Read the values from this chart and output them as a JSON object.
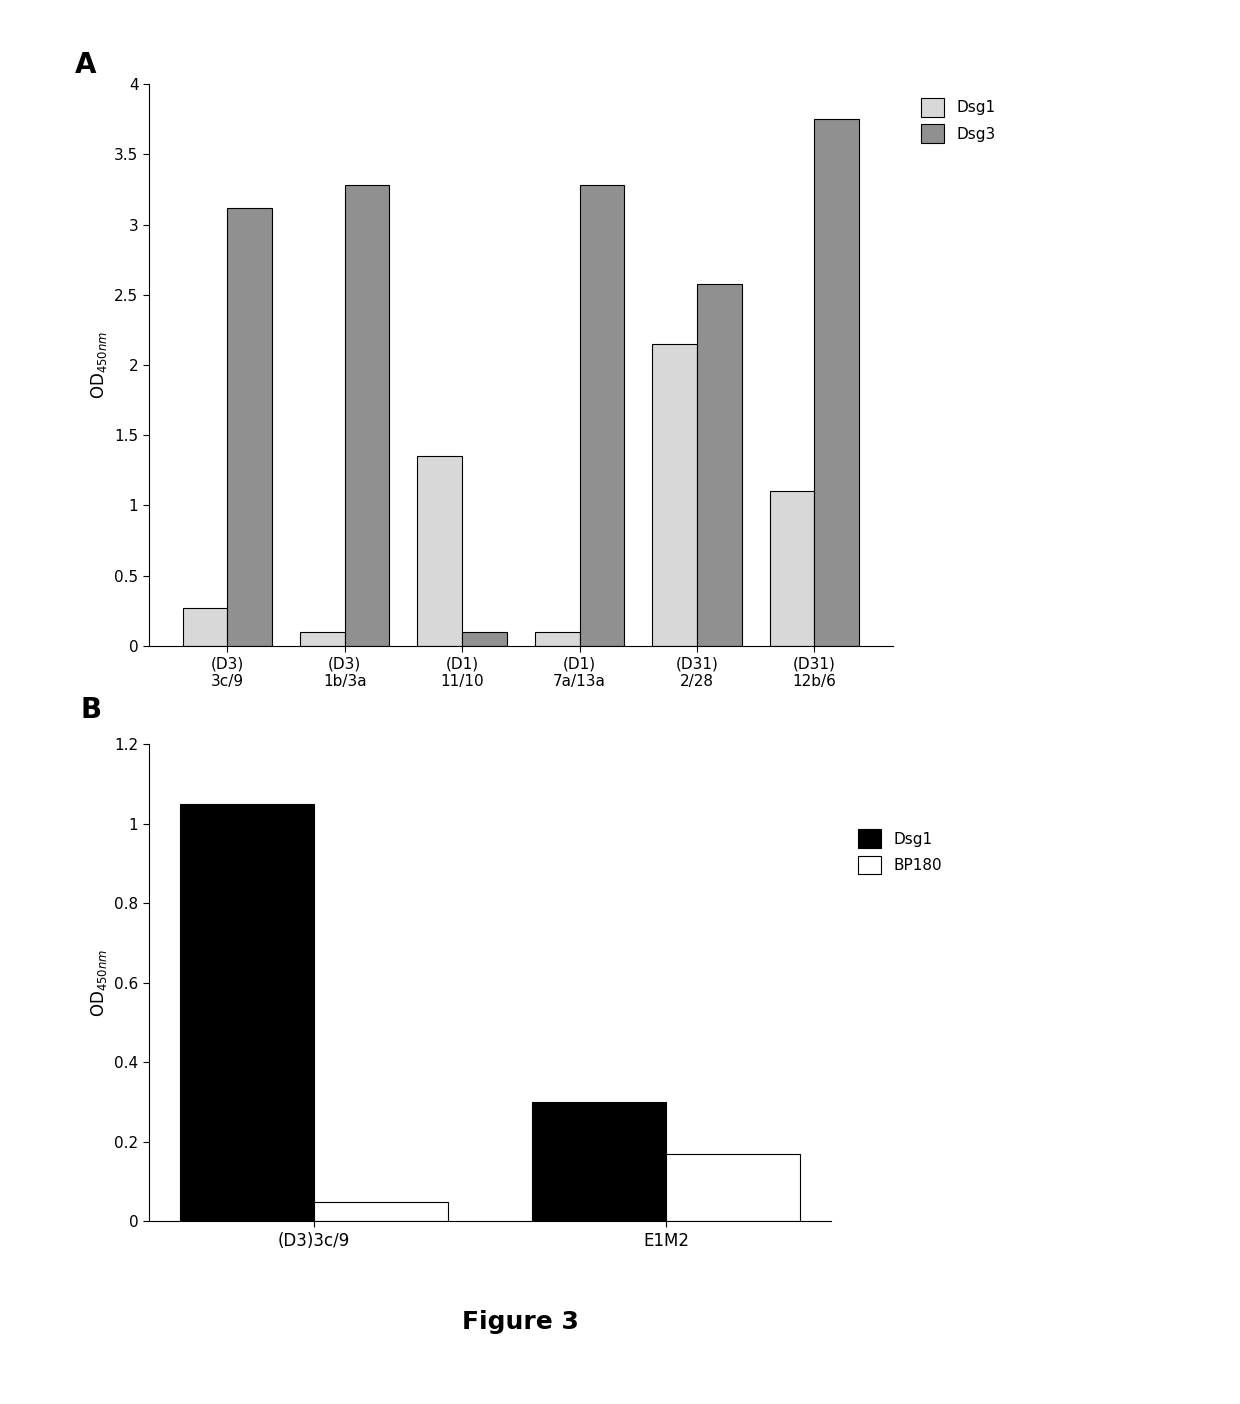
{
  "panel_A": {
    "categories": [
      "(D3)\n3c/9",
      "(D3)\n1b/3a",
      "(D1)\n11/10",
      "(D1)\n7a/13a",
      "(D31)\n2/28",
      "(D31)\n12b/6"
    ],
    "dsg1_values": [
      0.27,
      0.1,
      1.35,
      0.1,
      2.15,
      1.1
    ],
    "dsg3_values": [
      3.12,
      3.28,
      0.1,
      3.28,
      2.58,
      3.75
    ],
    "dsg1_color": "#d8d8d8",
    "dsg3_color": "#909090",
    "ylabel": "OD$_{450 nm}$",
    "ylim": [
      0,
      4
    ],
    "yticks": [
      0,
      0.5,
      1.0,
      1.5,
      2.0,
      2.5,
      3.0,
      3.5,
      4
    ],
    "ytick_labels": [
      "0",
      "0.5",
      "1",
      "1.5",
      "2",
      "2.5",
      "3",
      "3.5",
      "4"
    ],
    "legend_labels": [
      "Dsg1",
      "Dsg3"
    ],
    "panel_label": "A"
  },
  "panel_B": {
    "categories": [
      "(D3)3c/9",
      "E1M2"
    ],
    "dsg1_values": [
      1.05,
      0.3
    ],
    "bp180_values": [
      0.05,
      0.17
    ],
    "dsg1_color": "#000000",
    "bp180_color": "#ffffff",
    "ylabel": "OD$_{450 nm}$",
    "ylim": [
      0,
      1.2
    ],
    "yticks": [
      0,
      0.2,
      0.4,
      0.6,
      0.8,
      1.0,
      1.2
    ],
    "ytick_labels": [
      "0",
      "0.2",
      "0.4",
      "0.6",
      "0.8",
      "1",
      "1.2"
    ],
    "legend_labels": [
      "Dsg1",
      "BP180"
    ],
    "panel_label": "B"
  },
  "figure_title": "Figure 3",
  "background_color": "#ffffff",
  "fig_width": 12.4,
  "fig_height": 14.04
}
